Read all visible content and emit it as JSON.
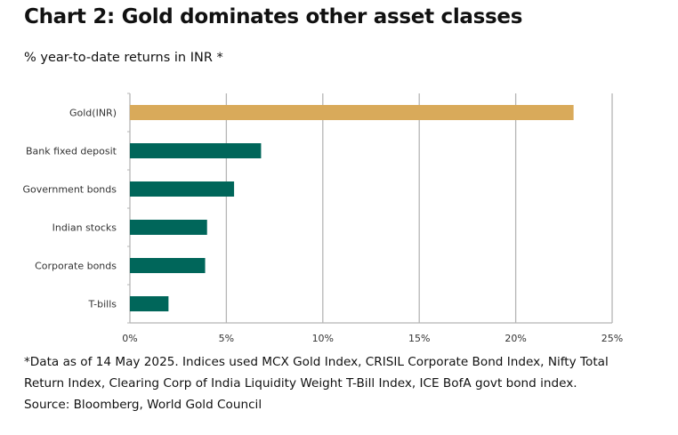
{
  "title": "Chart 2: Gold dominates other asset classes",
  "subtitle": "% year-to-date returns in INR *",
  "notes": [
    "*Data as of 14 May 2025. Indices used MCX Gold Index, CRISIL Corporate Bond Index, Nifty Total",
    "Return Index, Clearing Corp of India Liquidity Weight T-Bill Index, ICE BofA govt bond index.",
    "Source: Bloomberg, World Gold Council"
  ],
  "chart_data": {
    "type": "bar",
    "orientation": "horizontal",
    "title": "Chart 2: Gold dominates other asset classes",
    "subtitle": "% year-to-date returns in INR *",
    "categories": [
      "Gold(INR)",
      "Bank fixed deposit",
      "Government bonds",
      "Indian stocks",
      "Corporate bonds",
      "T-bills"
    ],
    "values": [
      23.0,
      6.8,
      5.4,
      4.0,
      3.9,
      2.0
    ],
    "colors": [
      "#d9aa5a",
      "#00665a",
      "#00665a",
      "#00665a",
      "#00665a",
      "#00665a"
    ],
    "xlim": [
      0,
      25
    ],
    "xticks": [
      "0%",
      "5%",
      "10%",
      "15%",
      "20%",
      "25%"
    ],
    "xlabel": "",
    "ylabel": "",
    "grid": "vertical"
  }
}
